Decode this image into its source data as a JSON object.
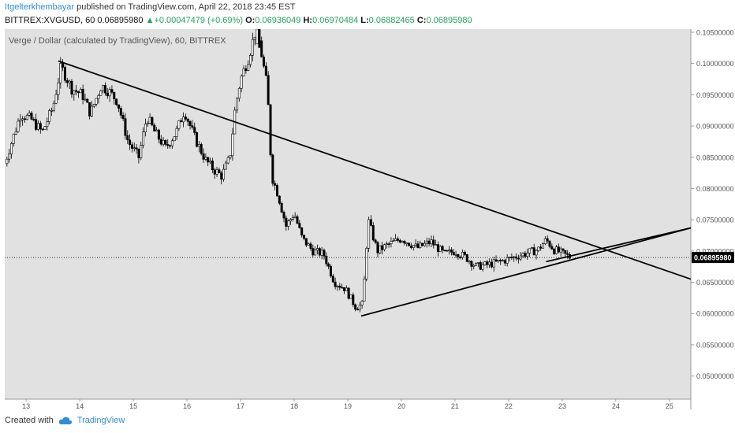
{
  "header": {
    "author": "Itgelterkhembayar",
    "published": "published on TradingView.com, April 22, 2018 23:45 EST",
    "symbol": "BITTREX:XVGUSD, 60",
    "last": "0.06895980",
    "change": "+0.00047479 (+0.69%)",
    "o_label": "O:",
    "o": "0.06936049",
    "h_label": "H:",
    "h": "0.06970484",
    "l_label": "L:",
    "l": "0.06882465",
    "c_label": "C:",
    "c": "0.06895980"
  },
  "footer": {
    "created_with": "Created with",
    "brand": "TradingView"
  },
  "colors": {
    "panel_bg": "#e1e1e1",
    "candle": "#000000",
    "accent": "#2f8cd8",
    "up": "#21a55a"
  },
  "chart_data": {
    "type": "candlestick",
    "title": "Verge / Dollar (calculated by TradingView), 60, BITTREX",
    "current_price": 0.0689598,
    "current_price_label": "0.06895980",
    "ylim": [
      0.0463,
      0.1055
    ],
    "xlim": [
      12.6,
      25.4
    ],
    "y_ticks": [
      {
        "v": 0.105,
        "label": "0.10500000"
      },
      {
        "v": 0.1,
        "label": "0.10000000"
      },
      {
        "v": 0.095,
        "label": "0.09500000"
      },
      {
        "v": 0.09,
        "label": "0.09000000"
      },
      {
        "v": 0.085,
        "label": "0.08500000"
      },
      {
        "v": 0.08,
        "label": "0.08000000"
      },
      {
        "v": 0.075,
        "label": "0.07500000"
      },
      {
        "v": 0.07,
        "label": "0.07000000"
      },
      {
        "v": 0.065,
        "label": "0.06500000"
      },
      {
        "v": 0.06,
        "label": "0.06000000"
      },
      {
        "v": 0.055,
        "label": "0.05500000"
      },
      {
        "v": 0.05,
        "label": "0.05000000"
      }
    ],
    "x_ticks": [
      {
        "v": 13,
        "label": "13"
      },
      {
        "v": 14,
        "label": "14"
      },
      {
        "v": 15,
        "label": "15"
      },
      {
        "v": 16,
        "label": "16"
      },
      {
        "v": 17,
        "label": "17"
      },
      {
        "v": 18,
        "label": "18"
      },
      {
        "v": 19,
        "label": "19"
      },
      {
        "v": 20,
        "label": "20"
      },
      {
        "v": 21,
        "label": "21"
      },
      {
        "v": 22,
        "label": "22"
      },
      {
        "v": 23,
        "label": "23"
      },
      {
        "v": 24,
        "label": "24"
      },
      {
        "v": 25,
        "label": "25"
      }
    ],
    "path": [
      [
        12.6,
        0.084
      ],
      [
        12.9,
        0.092
      ],
      [
        13.1,
        0.091
      ],
      [
        13.3,
        0.089
      ],
      [
        13.5,
        0.093
      ],
      [
        13.65,
        0.0995
      ],
      [
        13.85,
        0.096
      ],
      [
        14.05,
        0.095
      ],
      [
        14.2,
        0.092
      ],
      [
        14.4,
        0.0965
      ],
      [
        14.55,
        0.0955
      ],
      [
        14.7,
        0.094
      ],
      [
        14.9,
        0.0875
      ],
      [
        15.1,
        0.085
      ],
      [
        15.25,
        0.0915
      ],
      [
        15.4,
        0.089
      ],
      [
        15.6,
        0.0865
      ],
      [
        15.8,
        0.089
      ],
      [
        15.95,
        0.0925
      ],
      [
        16.15,
        0.088
      ],
      [
        16.35,
        0.0845
      ],
      [
        16.5,
        0.083
      ],
      [
        16.65,
        0.082
      ],
      [
        16.8,
        0.085
      ],
      [
        16.9,
        0.093
      ],
      [
        17.0,
        0.0975
      ],
      [
        17.15,
        0.101
      ],
      [
        17.3,
        0.106
      ],
      [
        17.42,
        0.1
      ],
      [
        17.5,
        0.096
      ],
      [
        17.58,
        0.082
      ],
      [
        17.7,
        0.079
      ],
      [
        17.85,
        0.074
      ],
      [
        18.0,
        0.076
      ],
      [
        18.15,
        0.072
      ],
      [
        18.35,
        0.07
      ],
      [
        18.55,
        0.0695
      ],
      [
        18.75,
        0.065
      ],
      [
        18.95,
        0.064
      ],
      [
        19.15,
        0.061
      ],
      [
        19.28,
        0.0615
      ],
      [
        19.38,
        0.075
      ],
      [
        19.55,
        0.07
      ],
      [
        19.75,
        0.071
      ],
      [
        20.0,
        0.072
      ],
      [
        20.3,
        0.0705
      ],
      [
        20.55,
        0.0715
      ],
      [
        20.8,
        0.0695
      ],
      [
        21.0,
        0.07
      ],
      [
        21.2,
        0.069
      ],
      [
        21.4,
        0.0675
      ],
      [
        21.6,
        0.0678
      ],
      [
        21.85,
        0.0683
      ],
      [
        22.1,
        0.069
      ],
      [
        22.35,
        0.0697
      ],
      [
        22.55,
        0.0702
      ],
      [
        22.7,
        0.0718
      ],
      [
        22.85,
        0.0702
      ],
      [
        23.0,
        0.0696
      ],
      [
        23.15,
        0.069
      ]
    ],
    "drawings": [
      {
        "name": "descending-trendline",
        "from": [
          13.6,
          0.1004
        ],
        "to": [
          25.4,
          0.0655
        ]
      },
      {
        "name": "ascending-trendline",
        "from": [
          19.25,
          0.0596
        ],
        "to": [
          25.4,
          0.0737
        ]
      },
      {
        "name": "apex-trendline",
        "from": [
          22.7,
          0.0683
        ],
        "to": [
          25.4,
          0.0737
        ]
      }
    ]
  }
}
